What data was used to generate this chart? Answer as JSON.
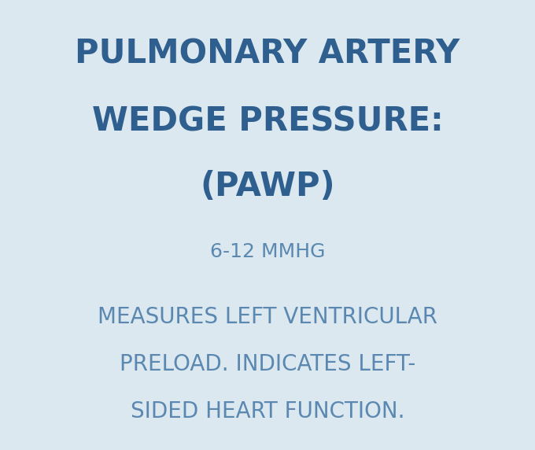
{
  "background_color": "#dce8f0",
  "title_line1": "PULMONARY ARTERY",
  "title_line2": "WEDGE PRESSURE:",
  "title_line3": "(PAWP)",
  "subtitle": "6-12 MMHG",
  "body_line1": "MEASURES LEFT VENTRICULAR",
  "body_line2": "PRELOAD. INDICATES LEFT-",
  "body_line3": "SIDED HEART FUNCTION.",
  "title_color": "#2e5f8e",
  "subtitle_color": "#5a88b0",
  "body_color": "#5a88b0",
  "title_fontsize": 30,
  "subtitle_fontsize": 18,
  "body_fontsize": 20,
  "fig_width": 6.8,
  "fig_height": 5.72,
  "dpi": 100
}
